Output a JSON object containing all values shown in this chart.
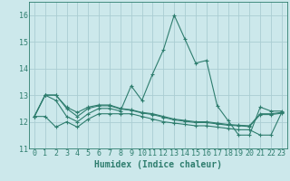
{
  "xlabel": "Humidex (Indice chaleur)",
  "x": [
    0,
    1,
    2,
    3,
    4,
    5,
    6,
    7,
    8,
    9,
    10,
    11,
    12,
    13,
    14,
    15,
    16,
    17,
    18,
    19,
    20,
    21,
    22,
    23
  ],
  "lines": [
    [
      12.2,
      13.0,
      12.8,
      12.2,
      12.0,
      12.3,
      12.5,
      12.5,
      12.4,
      13.35,
      12.8,
      13.8,
      14.7,
      16.0,
      15.1,
      14.2,
      14.3,
      12.6,
      12.05,
      11.5,
      11.5,
      12.55,
      12.4,
      12.4
    ],
    [
      12.2,
      13.0,
      13.0,
      12.55,
      12.35,
      12.55,
      12.63,
      12.63,
      12.5,
      12.45,
      12.35,
      12.3,
      12.2,
      12.1,
      12.05,
      12.0,
      12.0,
      11.95,
      11.9,
      11.87,
      11.85,
      12.3,
      12.3,
      12.35
    ],
    [
      12.2,
      13.0,
      13.0,
      12.5,
      12.2,
      12.5,
      12.6,
      12.6,
      12.48,
      12.43,
      12.33,
      12.27,
      12.17,
      12.07,
      12.02,
      11.97,
      11.97,
      11.92,
      11.87,
      11.85,
      11.82,
      12.27,
      12.27,
      12.32
    ],
    [
      12.2,
      12.2,
      11.8,
      12.0,
      11.8,
      12.1,
      12.3,
      12.3,
      12.3,
      12.3,
      12.2,
      12.1,
      12.0,
      11.95,
      11.9,
      11.85,
      11.85,
      11.8,
      11.75,
      11.7,
      11.7,
      11.5,
      11.5,
      12.35
    ]
  ],
  "line_color": "#2e7d6e",
  "bg_color": "#cce8eb",
  "grid_color": "#aacdd2",
  "ylim": [
    11.0,
    16.5
  ],
  "yticks": [
    11,
    12,
    13,
    14,
    15,
    16
  ],
  "xticks": [
    0,
    1,
    2,
    3,
    4,
    5,
    6,
    7,
    8,
    9,
    10,
    11,
    12,
    13,
    14,
    15,
    16,
    17,
    18,
    19,
    20,
    21,
    22,
    23
  ],
  "marker": "+",
  "markersize": 3,
  "linewidth": 0.8,
  "tick_fontsize": 6,
  "xlabel_fontsize": 7
}
